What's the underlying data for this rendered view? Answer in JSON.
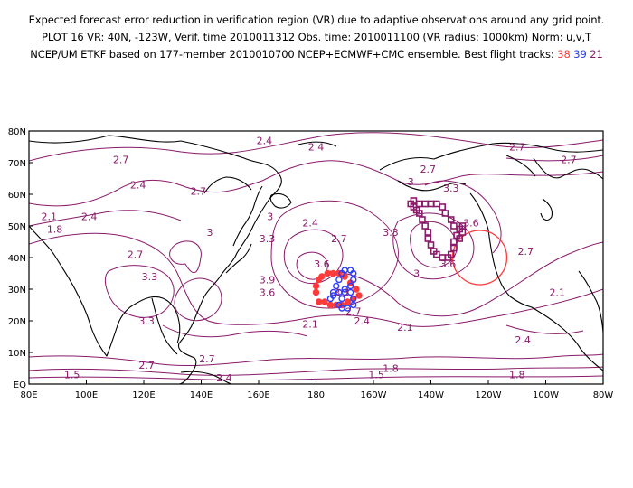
{
  "header": {
    "line1": "Expected forecast error reduction in verification region (VR) due to adaptive observations around any grid point.",
    "line2": "PLOT 16 VR: 40N, -123W, Verif. time 2010011312 Obs. time: 2010011100 (VR radius: 1000km) Norm: u,v,T",
    "line3": "NCEP/UM ETKF based on 177-member 2010010700 NCEP+ECMWF+CMC ensemble. Best flight tracks:",
    "track_red": "38",
    "track_blue": "39",
    "track_purple": "21"
  },
  "axes": {
    "lat_labels": [
      "80N",
      "70N",
      "60N",
      "50N",
      "40N",
      "30N",
      "20N",
      "10N",
      "EQ"
    ],
    "lon_labels": [
      "80E",
      "100E",
      "120E",
      "140E",
      "160E",
      "180",
      "160W",
      "140W",
      "120W",
      "100W",
      "80W"
    ]
  },
  "map_extent": {
    "lon_min": 80,
    "lon_max": 280,
    "lat_min": 0,
    "lat_max": 80
  },
  "contour_labels": [
    {
      "text": "2.4",
      "lon": 162,
      "lat": 77
    },
    {
      "text": "2.4",
      "lon": 180,
      "lat": 75
    },
    {
      "text": "2.7",
      "lon": 250,
      "lat": 75
    },
    {
      "text": "2.7",
      "lon": 268,
      "lat": 71
    },
    {
      "text": "2.7",
      "lon": 112,
      "lat": 71
    },
    {
      "text": "2.7",
      "lon": 219,
      "lat": 68
    },
    {
      "text": "3.3",
      "lon": 227,
      "lat": 62
    },
    {
      "text": "2.4",
      "lon": 118,
      "lat": 63
    },
    {
      "text": "2.7",
      "lon": 139,
      "lat": 61
    },
    {
      "text": "3",
      "lon": 213,
      "lat": 64
    },
    {
      "text": "2.1",
      "lon": 87,
      "lat": 53
    },
    {
      "text": "2.4",
      "lon": 101,
      "lat": 53
    },
    {
      "text": "1.8",
      "lon": 89,
      "lat": 49
    },
    {
      "text": "2.4",
      "lon": 178,
      "lat": 51
    },
    {
      "text": "3",
      "lon": 164,
      "lat": 53
    },
    {
      "text": "3.3",
      "lon": 163,
      "lat": 46
    },
    {
      "text": "2.7",
      "lon": 188,
      "lat": 46
    },
    {
      "text": "3.3",
      "lon": 206,
      "lat": 48
    },
    {
      "text": "3.6",
      "lon": 234,
      "lat": 51
    },
    {
      "text": "3",
      "lon": 143,
      "lat": 48
    },
    {
      "text": "2.7",
      "lon": 117,
      "lat": 41
    },
    {
      "text": "3.3",
      "lon": 122,
      "lat": 34
    },
    {
      "text": "3.6",
      "lon": 182,
      "lat": 38
    },
    {
      "text": "3.9",
      "lon": 163,
      "lat": 33
    },
    {
      "text": "3.6",
      "lon": 163,
      "lat": 29
    },
    {
      "text": "3.3",
      "lon": 189,
      "lat": 29
    },
    {
      "text": "2.7",
      "lon": 193,
      "lat": 23
    },
    {
      "text": "2.4",
      "lon": 196,
      "lat": 20
    },
    {
      "text": "3.3",
      "lon": 121,
      "lat": 20
    },
    {
      "text": "2.1",
      "lon": 178,
      "lat": 19
    },
    {
      "text": "2.1",
      "lon": 211,
      "lat": 18
    },
    {
      "text": "2.1",
      "lon": 264,
      "lat": 29
    },
    {
      "text": "2.4",
      "lon": 252,
      "lat": 14
    },
    {
      "text": "2.7",
      "lon": 253,
      "lat": 42
    },
    {
      "text": "3",
      "lon": 215,
      "lat": 35
    },
    {
      "text": "3.6",
      "lon": 226,
      "lat": 38
    },
    {
      "text": "2.7",
      "lon": 121,
      "lat": 6
    },
    {
      "text": "2.7",
      "lon": 142,
      "lat": 8
    },
    {
      "text": "2.4",
      "lon": 148,
      "lat": 2
    },
    {
      "text": "1.5",
      "lon": 95,
      "lat": 3
    },
    {
      "text": "1.5",
      "lon": 201,
      "lat": 3
    },
    {
      "text": "1.8",
      "lon": 206,
      "lat": 5
    },
    {
      "text": "1.8",
      "lon": 250,
      "lat": 3
    }
  ],
  "verification_region": {
    "lon": 237,
    "lat": 40
  },
  "tracks": {
    "red": {
      "color": "#ff3a3a",
      "points": [
        [
          181,
          26
        ],
        [
          180,
          29
        ],
        [
          180,
          31
        ],
        [
          181,
          33
        ],
        [
          182,
          34
        ],
        [
          184,
          35
        ],
        [
          186,
          35
        ],
        [
          188,
          35
        ],
        [
          190,
          34
        ],
        [
          192,
          32
        ],
        [
          194,
          30
        ],
        [
          195,
          28
        ],
        [
          193,
          27
        ],
        [
          191,
          26
        ],
        [
          189,
          25
        ],
        [
          187,
          25
        ],
        [
          185,
          25
        ],
        [
          183,
          26
        ]
      ]
    },
    "blue": {
      "color": "#2a3cff",
      "points": [
        [
          185,
          27
        ],
        [
          186,
          29
        ],
        [
          187,
          31
        ],
        [
          188,
          33
        ],
        [
          189,
          35
        ],
        [
          190,
          36
        ],
        [
          192,
          36
        ],
        [
          193,
          35
        ],
        [
          193,
          33
        ],
        [
          192,
          31
        ],
        [
          190,
          29
        ],
        [
          189,
          27
        ],
        [
          188,
          25
        ],
        [
          189,
          24
        ],
        [
          191,
          24
        ],
        [
          193,
          25
        ],
        [
          193,
          27
        ],
        [
          192,
          29
        ],
        [
          190,
          30
        ],
        [
          188,
          29
        ],
        [
          186,
          28
        ]
      ]
    },
    "purple": {
      "color": "#8a1a6a",
      "points": [
        [
          213,
          57
        ],
        [
          214,
          56
        ],
        [
          215,
          55
        ],
        [
          216,
          54
        ],
        [
          217,
          52
        ],
        [
          218,
          50
        ],
        [
          219,
          48
        ],
        [
          219,
          46
        ],
        [
          220,
          44
        ],
        [
          221,
          42
        ],
        [
          222,
          41
        ],
        [
          224,
          40
        ],
        [
          226,
          40
        ],
        [
          227,
          41
        ],
        [
          228,
          43
        ],
        [
          228,
          45
        ],
        [
          229,
          47
        ],
        [
          230,
          49
        ],
        [
          231,
          50
        ],
        [
          231,
          48
        ],
        [
          230,
          46
        ],
        [
          228,
          50
        ],
        [
          227,
          52
        ],
        [
          225,
          54
        ],
        [
          224,
          56
        ],
        [
          222,
          57
        ],
        [
          220,
          57
        ],
        [
          218,
          57
        ],
        [
          216,
          57
        ],
        [
          214,
          58
        ]
      ]
    }
  }
}
